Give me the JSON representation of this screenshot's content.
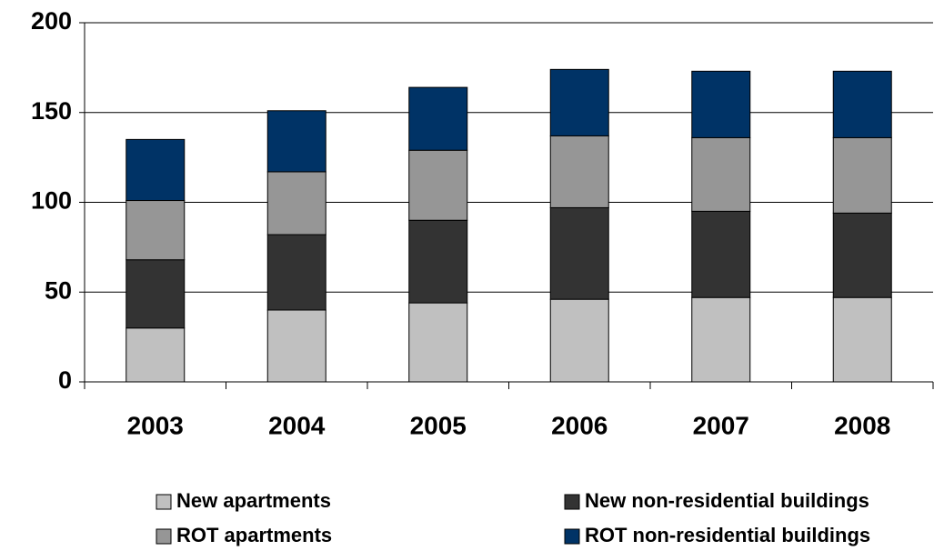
{
  "chart_data": {
    "type": "stacked_bar",
    "categories": [
      "2003",
      "2004",
      "2005",
      "2006",
      "2007",
      "2008"
    ],
    "series": [
      {
        "name": "New apartments",
        "color": "#c0c0c0",
        "values": [
          30,
          40,
          44,
          46,
          47,
          47
        ]
      },
      {
        "name": "New non-residential buildings",
        "color": "#333333",
        "values": [
          38,
          42,
          46,
          51,
          48,
          47
        ]
      },
      {
        "name": "ROT apartments",
        "color": "#969696",
        "values": [
          33,
          35,
          39,
          40,
          41,
          42
        ]
      },
      {
        "name": "ROT non-residential buildings",
        "color": "#003366",
        "values": [
          34,
          34,
          35,
          37,
          37,
          37
        ]
      }
    ],
    "ylim": [
      0,
      200
    ],
    "yticks": [
      0,
      50,
      100,
      150,
      200
    ],
    "grid": true
  }
}
